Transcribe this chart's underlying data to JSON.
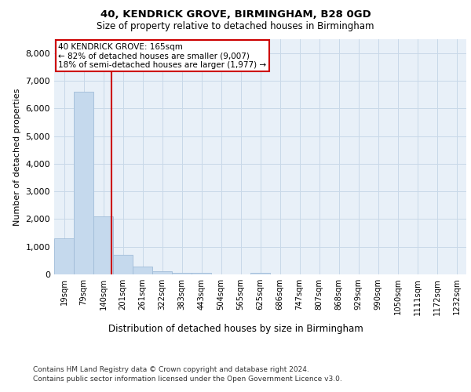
{
  "title_line1": "40, KENDRICK GROVE, BIRMINGHAM, B28 0GD",
  "title_line2": "Size of property relative to detached houses in Birmingham",
  "xlabel": "Distribution of detached houses by size in Birmingham",
  "ylabel": "Number of detached properties",
  "categories": [
    "19sqm",
    "79sqm",
    "140sqm",
    "201sqm",
    "261sqm",
    "322sqm",
    "383sqm",
    "443sqm",
    "504sqm",
    "565sqm",
    "625sqm",
    "686sqm",
    "747sqm",
    "807sqm",
    "868sqm",
    "929sqm",
    "990sqm",
    "1050sqm",
    "1111sqm",
    "1172sqm",
    "1232sqm"
  ],
  "values": [
    1300,
    6600,
    2100,
    700,
    290,
    120,
    60,
    70,
    0,
    0,
    70,
    0,
    0,
    0,
    0,
    0,
    0,
    0,
    0,
    0,
    0
  ],
  "bar_color": "#c5d9ed",
  "bar_edge_color": "#a0bcd8",
  "vline_color": "#cc0000",
  "vline_x": 2.41,
  "annotation_text": "40 KENDRICK GROVE: 165sqm\n← 82% of detached houses are smaller (9,007)\n18% of semi-detached houses are larger (1,977) →",
  "annotation_box_color": "#ffffff",
  "annotation_box_edge_color": "#cc0000",
  "ylim": [
    0,
    8500
  ],
  "yticks": [
    0,
    1000,
    2000,
    3000,
    4000,
    5000,
    6000,
    7000,
    8000
  ],
  "grid_color": "#c8d8e8",
  "background_color": "#e8f0f8",
  "footer_line1": "Contains HM Land Registry data © Crown copyright and database right 2024.",
  "footer_line2": "Contains public sector information licensed under the Open Government Licence v3.0."
}
